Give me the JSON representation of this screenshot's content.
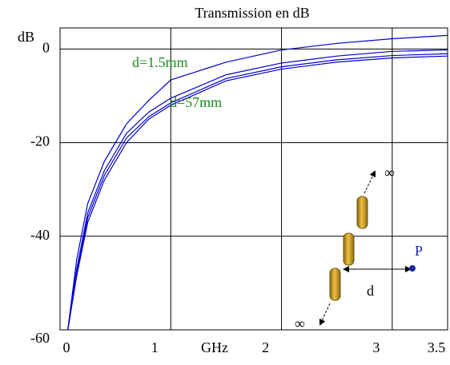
{
  "chart_data": {
    "type": "line",
    "title": "Transmission en dB",
    "x_label": "GHz",
    "y_label": "dB",
    "x": [
      0.07,
      0.15,
      0.25,
      0.4,
      0.6,
      0.8,
      1,
      1.5,
      2,
      2.5,
      3,
      3.5
    ],
    "series": [
      {
        "color": "#0000cc",
        "values": [
          -60,
          -45,
          -33,
          -24,
          -16,
          -11,
          -6.6,
          -2.8,
          -0.2,
          1.2,
          2.2,
          2.9
        ]
      },
      {
        "color": "#0000cc",
        "values": [
          -60,
          -47,
          -35,
          -26,
          -18,
          -13.5,
          -10.5,
          -5.5,
          -3,
          -1.5,
          -0.5,
          -0.2
        ]
      },
      {
        "color": "#0000cc",
        "values": [
          -60,
          -48,
          -36,
          -27,
          -19,
          -14.5,
          -11.5,
          -6.3,
          -3.8,
          -2.3,
          -1.4,
          -1.0
        ]
      },
      {
        "color": "#0000cc",
        "values": [
          -60,
          -48.5,
          -37,
          -28,
          -20,
          -15,
          -12,
          -6.8,
          -4.3,
          -2.8,
          -1.9,
          -1.5
        ]
      }
    ],
    "xlim": [
      0,
      3.5
    ],
    "xticks": [
      0,
      1,
      2,
      3,
      3.5
    ],
    "ylim": [
      -60,
      4.5
    ],
    "yticks": [
      0,
      -20,
      -40,
      -60
    ],
    "grid": true,
    "annotations": [
      "d=1.5mm",
      "d=57mm"
    ],
    "inset_labels": [
      "∞",
      "∞",
      "d",
      "P"
    ]
  }
}
